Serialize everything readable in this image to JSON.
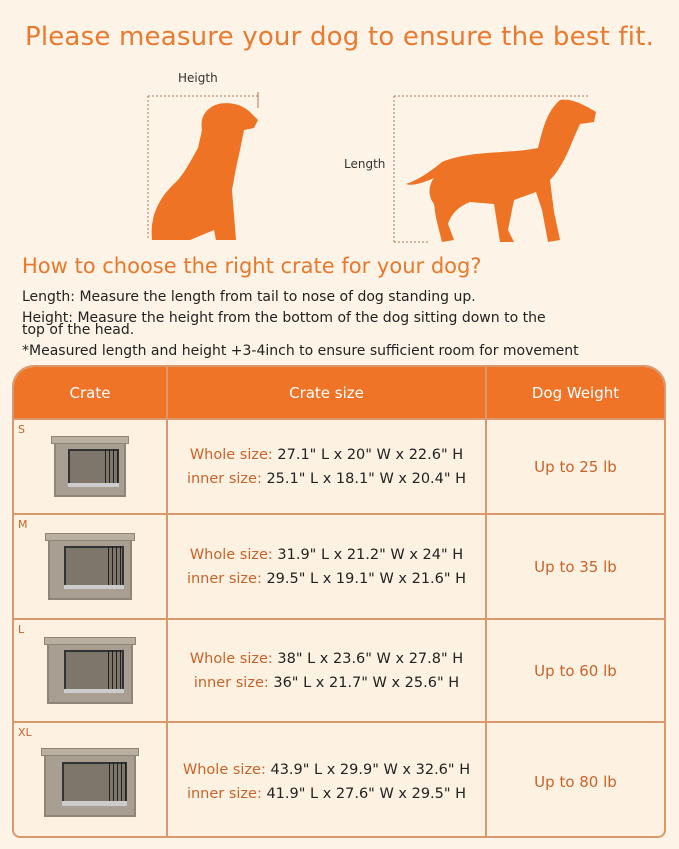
{
  "title": "Please measure your dog to ensure the best fit.",
  "figure": {
    "height_label": "Heigth",
    "length_label": "Length",
    "dog_color": "#ef7324"
  },
  "subtitle": "How to choose the right crate for your dog?",
  "instructions": {
    "length": "Length: Measure the length from tail to nose of dog standing up.",
    "height_1": "Height: Measure the height from the bottom of the dog sitting down to the",
    "height_2": "top of the head.",
    "note": "*Measured length and height +3-4inch to ensure sufficient room for movement"
  },
  "table": {
    "headers": [
      "Crate",
      "Crate size",
      "Dog Weight"
    ],
    "rows": [
      {
        "size": "S",
        "whole_label": "Whole size:",
        "whole": "27.1\" L x 20\" W x 22.6\" H",
        "inner_label": "inner size:",
        "inner": "25.1\" L x 18.1\" W x 20.4\" H",
        "weight": "Up to 25 lb"
      },
      {
        "size": "M",
        "whole_label": "Whole size:",
        "whole": "31.9\" L x 21.2\" W x 24\" H",
        "inner_label": "inner size:",
        "inner": "29.5\" L x 19.1\" W x 21.6\" H",
        "weight": "Up to 35 lb"
      },
      {
        "size": "L",
        "whole_label": "Whole size:",
        "whole": "38\" L x 23.6\" W x 27.8\" H",
        "inner_label": "inner size:",
        "inner": "36\" L x 21.7\" W x 25.6\" H",
        "weight": "Up to 60 lb"
      },
      {
        "size": "XL",
        "whole_label": "Whole size:",
        "whole": "43.9\" L x 29.9\" W x 32.6\" H",
        "inner_label": "inner size:",
        "inner": "41.9\" L x 27.6\" W x 29.5\" H",
        "weight": "Up to 80 lb"
      }
    ]
  }
}
